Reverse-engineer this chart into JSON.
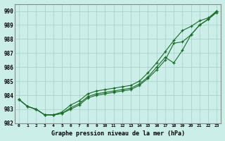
{
  "title": "Graphe pression niveau de la mer (hPa)",
  "bg_color": "#cceee8",
  "grid_color": "#aad4ce",
  "line_color": "#1a6b2a",
  "x_labels": [
    "0",
    "1",
    "2",
    "3",
    "4",
    "5",
    "6",
    "7",
    "8",
    "9",
    "10",
    "11",
    "12",
    "13",
    "14",
    "15",
    "16",
    "17",
    "18",
    "19",
    "20",
    "21",
    "22",
    "23"
  ],
  "ylim": [
    982.0,
    990.5
  ],
  "yticks": [
    982,
    983,
    984,
    985,
    986,
    987,
    988,
    989,
    990
  ],
  "series1": [
    983.7,
    983.2,
    983.0,
    982.6,
    982.6,
    982.7,
    983.0,
    983.3,
    983.8,
    984.0,
    984.1,
    984.2,
    984.3,
    984.4,
    984.7,
    985.2,
    985.8,
    986.5,
    987.7,
    987.8,
    988.3,
    989.0,
    989.4,
    989.9
  ],
  "series2": [
    983.7,
    983.2,
    983.0,
    982.6,
    982.6,
    982.7,
    983.1,
    983.4,
    983.9,
    984.1,
    984.2,
    984.3,
    984.4,
    984.5,
    984.8,
    985.3,
    986.0,
    986.7,
    986.3,
    987.2,
    988.3,
    989.0,
    989.4,
    990.0
  ],
  "series3": [
    983.7,
    983.2,
    983.0,
    982.6,
    982.6,
    982.8,
    983.3,
    983.6,
    984.1,
    984.3,
    984.4,
    984.5,
    984.6,
    984.7,
    985.0,
    985.6,
    986.3,
    987.1,
    987.9,
    988.6,
    988.9,
    989.3,
    989.5,
    990.0
  ]
}
